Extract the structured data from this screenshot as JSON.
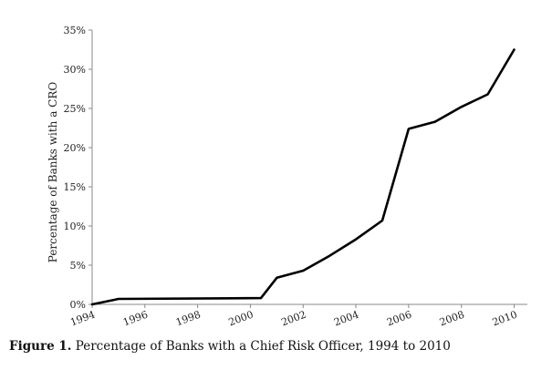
{
  "chart_data": {
    "type": "line",
    "title": "",
    "xlabel": "",
    "ylabel": "Percentage of Banks with a CRO",
    "xlim": [
      1994,
      2010.5
    ],
    "ylim": [
      0,
      35
    ],
    "x_ticks": [
      "1994",
      "1996",
      "1998",
      "2000",
      "2002",
      "2004",
      "2006",
      "2008",
      "2010"
    ],
    "y_ticks": [
      "0%",
      "5%",
      "10%",
      "15%",
      "20%",
      "25%",
      "30%",
      "35%"
    ],
    "grid": false,
    "legend": "none",
    "series": [
      {
        "color": "#000000",
        "points": [
          {
            "x": 1994,
            "y": 0.0
          },
          {
            "x": 1995,
            "y": 0.7
          },
          {
            "x": 2000.4,
            "y": 0.8
          },
          {
            "x": 2001,
            "y": 3.4
          },
          {
            "x": 2002,
            "y": 4.3
          },
          {
            "x": 2003,
            "y": 6.2
          },
          {
            "x": 2004,
            "y": 8.3
          },
          {
            "x": 2005,
            "y": 10.7
          },
          {
            "x": 2006,
            "y": 22.4
          },
          {
            "x": 2007,
            "y": 23.3
          },
          {
            "x": 2008,
            "y": 25.2
          },
          {
            "x": 2009,
            "y": 26.8
          },
          {
            "x": 2010,
            "y": 32.5
          }
        ]
      }
    ]
  },
  "caption": {
    "label": "Figure 1.",
    "text": "Percentage of Banks with a Chief Risk Officer, 1994 to 2010"
  }
}
